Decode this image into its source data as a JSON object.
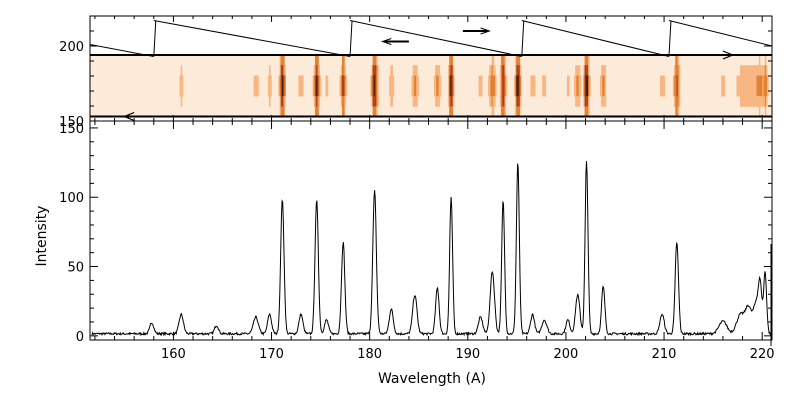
{
  "chart_data": {
    "type": "line",
    "title": "",
    "xlabel": "Wavelength (A)",
    "ylabel": "Intensity",
    "xlim": [
      151.5,
      221
    ],
    "ylim": [
      -3,
      155
    ],
    "upper_panel_ylim": [
      150,
      220
    ],
    "x_ticks": [
      160,
      170,
      180,
      190,
      200,
      210,
      220
    ],
    "y_ticks": [
      0,
      50,
      100,
      150
    ],
    "upper_y_ticks": [
      150,
      200
    ],
    "grid": false,
    "legend": "none",
    "line_color": "#000000",
    "heatmap_colors": [
      "#fdebd9",
      "#f7b37c",
      "#e07a28",
      "#a8370c",
      "#3a0c02"
    ],
    "baseline": 1.5,
    "peaks": [
      {
        "x": 157.8,
        "y": 8,
        "w": 0.2
      },
      {
        "x": 160.8,
        "y": 14,
        "w": 0.22
      },
      {
        "x": 164.4,
        "y": 6,
        "w": 0.2
      },
      {
        "x": 168.4,
        "y": 12,
        "w": 0.25
      },
      {
        "x": 169.8,
        "y": 14,
        "w": 0.2
      },
      {
        "x": 171.1,
        "y": 97,
        "w": 0.17
      },
      {
        "x": 173.0,
        "y": 14,
        "w": 0.2
      },
      {
        "x": 174.6,
        "y": 96,
        "w": 0.17
      },
      {
        "x": 175.6,
        "y": 10,
        "w": 0.2
      },
      {
        "x": 177.3,
        "y": 66,
        "w": 0.17
      },
      {
        "x": 180.5,
        "y": 103,
        "w": 0.18
      },
      {
        "x": 182.2,
        "y": 18,
        "w": 0.2
      },
      {
        "x": 184.6,
        "y": 28,
        "w": 0.22
      },
      {
        "x": 186.9,
        "y": 33,
        "w": 0.18
      },
      {
        "x": 188.3,
        "y": 98,
        "w": 0.15
      },
      {
        "x": 191.3,
        "y": 12,
        "w": 0.22
      },
      {
        "x": 192.5,
        "y": 45,
        "w": 0.22
      },
      {
        "x": 193.6,
        "y": 96,
        "w": 0.15
      },
      {
        "x": 195.1,
        "y": 124,
        "w": 0.15
      },
      {
        "x": 196.6,
        "y": 14,
        "w": 0.2
      },
      {
        "x": 197.8,
        "y": 10,
        "w": 0.25
      },
      {
        "x": 200.2,
        "y": 10,
        "w": 0.2
      },
      {
        "x": 201.2,
        "y": 28,
        "w": 0.22
      },
      {
        "x": 202.1,
        "y": 124,
        "w": 0.15
      },
      {
        "x": 203.8,
        "y": 34,
        "w": 0.17
      },
      {
        "x": 209.8,
        "y": 14,
        "w": 0.22
      },
      {
        "x": 211.3,
        "y": 66,
        "w": 0.17
      },
      {
        "x": 216.0,
        "y": 9,
        "w": 0.4
      },
      {
        "x": 217.8,
        "y": 14,
        "w": 0.4
      },
      {
        "x": 218.6,
        "y": 18,
        "w": 0.3
      },
      {
        "x": 219.4,
        "y": 22,
        "w": 0.3
      },
      {
        "x": 219.8,
        "y": 30,
        "w": 0.18
      },
      {
        "x": 220.3,
        "y": 44,
        "w": 0.15
      }
    ],
    "scan_segments": [
      {
        "x0": 151.5,
        "y0": 201,
        "x1": 158.0,
        "y1": 193
      },
      {
        "x0": 158.0,
        "y0": 217,
        "x1": 178.0,
        "y1": 193
      },
      {
        "x0": 178.0,
        "y0": 217,
        "x1": 195.5,
        "y1": 193
      },
      {
        "x0": 195.5,
        "y0": 217,
        "x1": 210.5,
        "y1": 193
      },
      {
        "x0": 210.5,
        "y0": 217,
        "x1": 221.0,
        "y1": 200
      }
    ],
    "scan_jumps": [
      158.0,
      178.0,
      195.5,
      210.5
    ]
  }
}
